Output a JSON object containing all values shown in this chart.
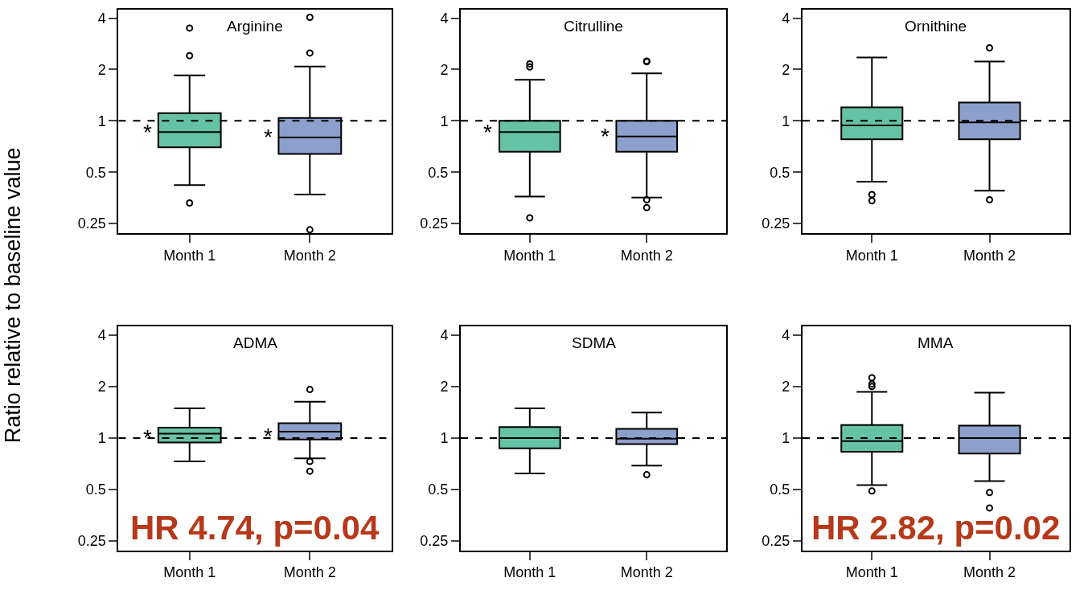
{
  "chart_data": [
    {
      "type": "box",
      "title": "Arginine",
      "ylabel": "Ratio relative to baseline value",
      "categories": [
        "Month 1",
        "Month 2"
      ],
      "colors": [
        "#66c2a5",
        "#8da0cb"
      ],
      "log": "y",
      "ylim": [
        0.22,
        4.5
      ],
      "yticks": [
        0.25,
        0.5,
        1,
        2,
        4
      ],
      "boxes": [
        {
          "low": 0.42,
          "q1": 0.7,
          "median": 0.86,
          "q3": 1.11,
          "high": 1.85,
          "outliers": [
            3.5,
            2.41,
            0.33
          ]
        },
        {
          "low": 0.37,
          "q1": 0.64,
          "median": 0.8,
          "q3": 1.04,
          "high": 2.08,
          "outliers": [
            4.05,
            2.5,
            0.23
          ]
        }
      ],
      "ref_lines": [
        {
          "axis": "y",
          "value": 1,
          "line_style": "dashed",
          "color": "#000000"
        }
      ],
      "annotations": [
        {
          "text": "*",
          "x": "Month 1",
          "y": 0.86
        },
        {
          "text": "*",
          "x": "Month 2",
          "y": 0.8
        }
      ]
    },
    {
      "type": "box",
      "title": "Citrulline",
      "categories": [
        "Month 1",
        "Month 2"
      ],
      "colors": [
        "#66c2a5",
        "#8da0cb"
      ],
      "log": "y",
      "ylim": [
        0.22,
        4.5
      ],
      "yticks": [
        0.25,
        0.5,
        1,
        2,
        4
      ],
      "boxes": [
        {
          "low": 0.36,
          "q1": 0.66,
          "median": 0.86,
          "q3": 1.0,
          "high": 1.74,
          "outliers": [
            2.16,
            2.07,
            0.27
          ]
        },
        {
          "low": 0.355,
          "q1": 0.66,
          "median": 0.81,
          "q3": 1.0,
          "high": 1.9,
          "outliers": [
            2.24,
            2.22,
            0.345,
            0.31
          ]
        }
      ],
      "ref_lines": [
        {
          "axis": "y",
          "value": 1,
          "line_style": "dashed",
          "color": "#000000"
        }
      ],
      "annotations": [
        {
          "text": "*",
          "x": "Month 1",
          "y": 0.86
        },
        {
          "text": "*",
          "x": "Month 2",
          "y": 0.81
        }
      ]
    },
    {
      "type": "box",
      "title": "Ornithine",
      "categories": [
        "Month 1",
        "Month 2"
      ],
      "colors": [
        "#66c2a5",
        "#8da0cb"
      ],
      "log": "y",
      "ylim": [
        0.22,
        4.5
      ],
      "yticks": [
        0.25,
        0.5,
        1,
        2,
        4
      ],
      "boxes": [
        {
          "low": 0.44,
          "q1": 0.78,
          "median": 0.94,
          "q3": 1.2,
          "high": 2.35,
          "outliers": [
            0.37,
            0.34
          ]
        },
        {
          "low": 0.39,
          "q1": 0.78,
          "median": 0.98,
          "q3": 1.28,
          "high": 2.23,
          "outliers": [
            2.68,
            0.345
          ]
        }
      ],
      "ref_lines": [
        {
          "axis": "y",
          "value": 1,
          "line_style": "dashed",
          "color": "#000000"
        }
      ]
    },
    {
      "type": "box",
      "title": "ADMA",
      "categories": [
        "Month 1",
        "Month 2"
      ],
      "colors": [
        "#66c2a5",
        "#8da0cb"
      ],
      "log": "y",
      "ylim": [
        0.22,
        4.5
      ],
      "yticks": [
        0.25,
        0.5,
        1,
        2,
        4
      ],
      "boxes": [
        {
          "low": 0.73,
          "q1": 0.94,
          "median": 1.06,
          "q3": 1.15,
          "high": 1.49
        },
        {
          "low": 0.76,
          "q1": 0.98,
          "median": 1.09,
          "q3": 1.22,
          "high": 1.63,
          "outliers": [
            1.92,
            0.73,
            0.64
          ]
        }
      ],
      "ref_lines": [
        {
          "axis": "y",
          "value": 1,
          "line_style": "dashed",
          "color": "#000000"
        }
      ],
      "annotations": [
        {
          "text": "*",
          "x": "Month 1",
          "y": 1.0
        },
        {
          "text": "*",
          "x": "Month 2",
          "y": 1.03
        },
        "HR 4.74, p=0.04"
      ]
    },
    {
      "type": "box",
      "title": "SDMA",
      "categories": [
        "Month 1",
        "Month 2"
      ],
      "colors": [
        "#66c2a5",
        "#8da0cb"
      ],
      "log": "y",
      "ylim": [
        0.22,
        4.5
      ],
      "yticks": [
        0.25,
        0.5,
        1,
        2,
        4
      ],
      "boxes": [
        {
          "low": 0.62,
          "q1": 0.87,
          "median": 1.0,
          "q3": 1.16,
          "high": 1.49
        },
        {
          "low": 0.69,
          "q1": 0.92,
          "median": 0.99,
          "q3": 1.13,
          "high": 1.41,
          "outliers": [
            0.61
          ]
        }
      ],
      "ref_lines": [
        {
          "axis": "y",
          "value": 1,
          "line_style": "dashed",
          "color": "#000000"
        }
      ]
    },
    {
      "type": "box",
      "title": "MMA",
      "categories": [
        "Month 1",
        "Month 2"
      ],
      "colors": [
        "#66c2a5",
        "#8da0cb"
      ],
      "log": "y",
      "ylim": [
        0.22,
        4.5
      ],
      "yticks": [
        0.25,
        0.5,
        1,
        2,
        4
      ],
      "boxes": [
        {
          "low": 0.53,
          "q1": 0.83,
          "median": 0.96,
          "q3": 1.19,
          "high": 1.86,
          "outliers": [
            2.25,
            2.07,
            2.0,
            0.49
          ]
        },
        {
          "low": 0.56,
          "q1": 0.81,
          "median": 1.0,
          "q3": 1.18,
          "high": 1.84,
          "outliers": [
            0.48,
            0.39
          ]
        }
      ],
      "ref_lines": [
        {
          "axis": "y",
          "value": 1,
          "line_style": "dashed",
          "color": "#000000"
        }
      ],
      "annotations": [
        "HR 2.82, p=0.02"
      ]
    }
  ]
}
